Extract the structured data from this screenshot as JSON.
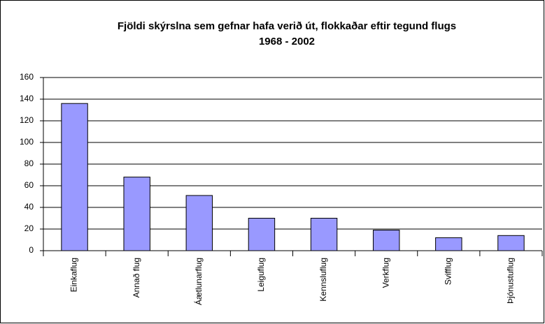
{
  "chart_data": {
    "type": "bar",
    "title": "Fjöldi skýrslna sem gefnar hafa verið út, flokkaðar eftir tegund flugs",
    "subtitle": "1968 - 2002",
    "categories": [
      "Einkaflug",
      "Annað flug",
      "Áætlunarflug",
      "Leiguflug",
      "Kennsluflug",
      "Verkflug",
      "Svifflug",
      "Þjónustuflug"
    ],
    "values": [
      136,
      68,
      51,
      30,
      30,
      19,
      12,
      14
    ],
    "color": "#9999ff",
    "ylim": [
      0,
      160
    ],
    "yticks": [
      0,
      20,
      40,
      60,
      80,
      100,
      120,
      140,
      160
    ],
    "grid": true
  }
}
